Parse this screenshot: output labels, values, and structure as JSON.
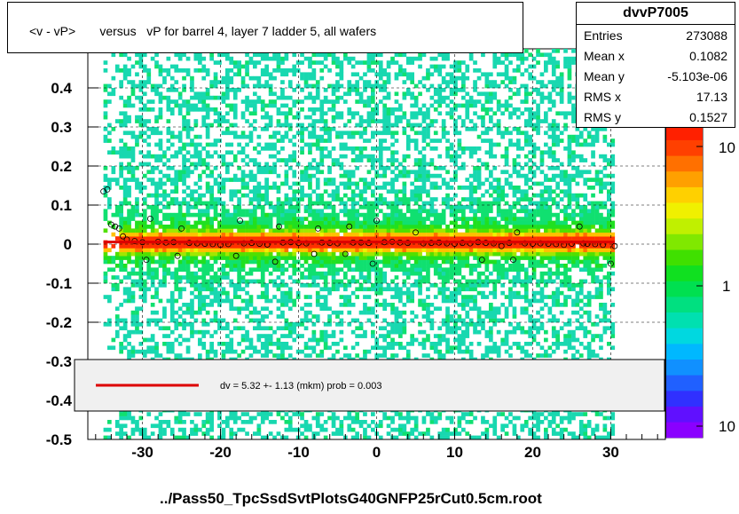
{
  "title": "<v - vP>       versus   vP for barrel 4, layer 7 ladder 5, all wafers",
  "stats": {
    "name": "dvvP7005",
    "rows": [
      {
        "key": "Entries",
        "value": "273088"
      },
      {
        "key": "Mean x",
        "value": "0.1082"
      },
      {
        "key": "Mean y",
        "value": "-5.103e-06"
      },
      {
        "key": "RMS x",
        "value": "17.13"
      },
      {
        "key": "RMS y",
        "value": "0.1527"
      }
    ]
  },
  "footer": "../Pass50_TpcSsdSvtPlotsG40GNFP25rCut0.5cm.root",
  "legend_text": "dv =    5.32 +-  1.13 (mkm) prob = 0.003",
  "colors": {
    "fit_line": "#dd0000",
    "legend_bg": "#f0f0f0"
  },
  "chart_data": {
    "type": "heatmap",
    "xlim": [
      -37,
      37
    ],
    "ylim": [
      -0.5,
      0.5
    ],
    "x_ticks": [
      -30,
      -20,
      -10,
      0,
      10,
      20,
      30
    ],
    "x_tick_labels": [
      "-30",
      "-20",
      "-10",
      "0",
      "10",
      "20",
      "30"
    ],
    "y_ticks": [
      -0.5,
      -0.4,
      -0.3,
      -0.2,
      -0.1,
      0,
      0.1,
      0.2,
      0.3,
      0.4
    ],
    "y_tick_labels": [
      "-0.5",
      "-0.4",
      "-0.3",
      "-0.2",
      "-0.1",
      "0",
      "0.1",
      "0.2",
      "0.3",
      "0.4"
    ],
    "colorbar_labels": [
      "10",
      "1",
      "10"
    ],
    "grid": true,
    "data_x_range": [
      -35,
      30.5
    ],
    "profile": [
      [
        -35.0,
        0.135
      ],
      [
        -34.5,
        0.14
      ],
      [
        -34.0,
        0.05
      ],
      [
        -33.5,
        0.045
      ],
      [
        -33.0,
        0.04
      ],
      [
        -32.5,
        0.02
      ],
      [
        -32.0,
        0.012
      ],
      [
        -31.0,
        0.008
      ],
      [
        -30.0,
        0.005
      ],
      [
        -29.5,
        -0.04
      ],
      [
        -29.0,
        0.065
      ],
      [
        -28.0,
        0.006
      ],
      [
        -27.0,
        0.004
      ],
      [
        -26.0,
        0.005
      ],
      [
        -25.5,
        -0.03
      ],
      [
        -25.0,
        0.04
      ],
      [
        -24.0,
        0.003
      ],
      [
        -23.0,
        0.002
      ],
      [
        -22.0,
        0.001
      ],
      [
        -21.0,
        0.0
      ],
      [
        -20.0,
        -0.002
      ],
      [
        -19.0,
        0.0
      ],
      [
        -18.0,
        -0.03
      ],
      [
        -17.5,
        0.06
      ],
      [
        -17.0,
        0.002
      ],
      [
        -16.0,
        0.003
      ],
      [
        -15.0,
        0.001
      ],
      [
        -14.0,
        -0.001
      ],
      [
        -13.0,
        -0.045
      ],
      [
        -12.5,
        0.045
      ],
      [
        -12.0,
        0.004
      ],
      [
        -11.0,
        0.005
      ],
      [
        -10.0,
        0.003
      ],
      [
        -9.0,
        0.002
      ],
      [
        -8.0,
        -0.025
      ],
      [
        -7.5,
        0.04
      ],
      [
        -7.0,
        0.004
      ],
      [
        -6.0,
        0.003
      ],
      [
        -5.0,
        0.002
      ],
      [
        -4.0,
        -0.025
      ],
      [
        -3.5,
        0.045
      ],
      [
        -3.0,
        0.004
      ],
      [
        -2.0,
        0.004
      ],
      [
        -1.0,
        0.003
      ],
      [
        -0.5,
        -0.05
      ],
      [
        0.0,
        0.06
      ],
      [
        1.0,
        0.005
      ],
      [
        2.0,
        0.006
      ],
      [
        3.0,
        0.004
      ],
      [
        4.0,
        0.003
      ],
      [
        5.0,
        0.03
      ],
      [
        6.0,
        0.002
      ],
      [
        7.0,
        0.003
      ],
      [
        8.0,
        0.004
      ],
      [
        9.0,
        0.002
      ],
      [
        10.0,
        0.001
      ],
      [
        11.0,
        0.003
      ],
      [
        12.0,
        0.002
      ],
      [
        13.0,
        0.005
      ],
      [
        13.5,
        -0.04
      ],
      [
        14.0,
        0.003
      ],
      [
        15.0,
        0.002
      ],
      [
        16.0,
        -0.005
      ],
      [
        17.0,
        0.003
      ],
      [
        17.5,
        -0.04
      ],
      [
        18.0,
        0.03
      ],
      [
        19.0,
        0.002
      ],
      [
        20.0,
        0.001
      ],
      [
        21.0,
        0.002
      ],
      [
        22.0,
        0.001
      ],
      [
        23.0,
        0.0
      ],
      [
        24.0,
        -0.002
      ],
      [
        25.0,
        0.001
      ],
      [
        26.0,
        0.045
      ],
      [
        26.5,
        0.002
      ],
      [
        27.0,
        0.001
      ],
      [
        28.0,
        0.0
      ],
      [
        29.0,
        -0.002
      ],
      [
        30.0,
        -0.05
      ],
      [
        30.5,
        -0.005
      ]
    ],
    "fit": {
      "x": [
        -35,
        30.5
      ],
      "y": [
        0.00532,
        0.00532
      ]
    }
  }
}
